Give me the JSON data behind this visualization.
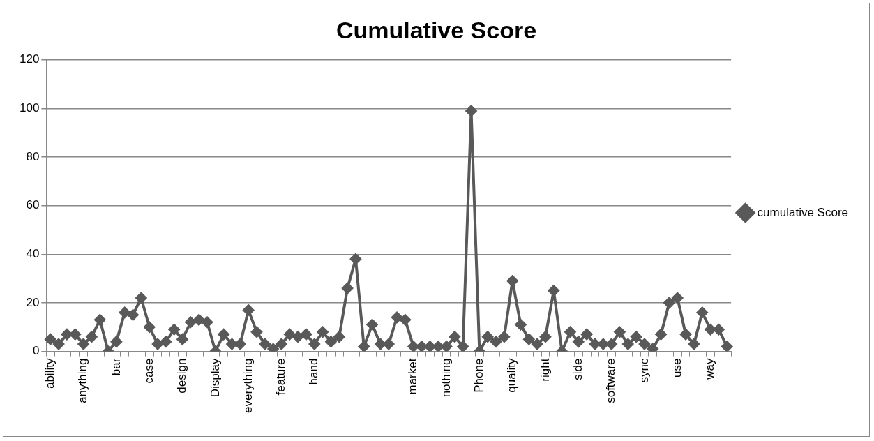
{
  "chart_data": {
    "type": "line",
    "title": "Cumulative Score",
    "categories": [
      "ability",
      null,
      null,
      null,
      "anything",
      null,
      null,
      null,
      "bar",
      null,
      null,
      null,
      "case",
      null,
      null,
      null,
      "design",
      null,
      null,
      null,
      "Display",
      null,
      null,
      null,
      "everything",
      null,
      null,
      null,
      "feature",
      null,
      null,
      null,
      "hand",
      null,
      null,
      null,
      null,
      null,
      null,
      null,
      null,
      null,
      null,
      null,
      "market",
      null,
      null,
      null,
      "nothing",
      null,
      null,
      null,
      "Phone",
      null,
      null,
      null,
      "quality",
      null,
      null,
      null,
      "right",
      null,
      null,
      null,
      "side",
      null,
      null,
      null,
      "software",
      null,
      null,
      null,
      "sync",
      null,
      null,
      null,
      "use",
      null,
      null,
      null,
      "way",
      null,
      null
    ],
    "series": [
      {
        "name": "cumulative Score",
        "color": "#595959",
        "values": [
          5,
          3,
          7,
          7,
          3,
          6,
          13,
          0,
          4,
          16,
          15,
          22,
          10,
          3,
          4,
          9,
          5,
          12,
          13,
          12,
          0,
          7,
          3,
          3,
          17,
          8,
          3,
          1,
          3,
          7,
          6,
          7,
          3,
          8,
          4,
          6,
          26,
          38,
          2,
          11,
          3,
          3,
          14,
          13,
          2,
          2,
          2,
          2,
          2,
          6,
          2,
          99,
          0,
          6,
          4,
          6,
          29,
          11,
          5,
          3,
          6,
          25,
          0,
          8,
          4,
          7,
          3,
          3,
          3,
          8,
          3,
          6,
          3,
          1,
          7,
          20,
          22,
          7,
          3,
          16,
          9,
          9,
          2
        ]
      }
    ],
    "ylim": [
      0,
      120
    ],
    "yticks": [
      0,
      20,
      40,
      60,
      80,
      100,
      120
    ],
    "grid": "y",
    "legend": "right",
    "marker": "diamond",
    "line_style": "solid"
  }
}
